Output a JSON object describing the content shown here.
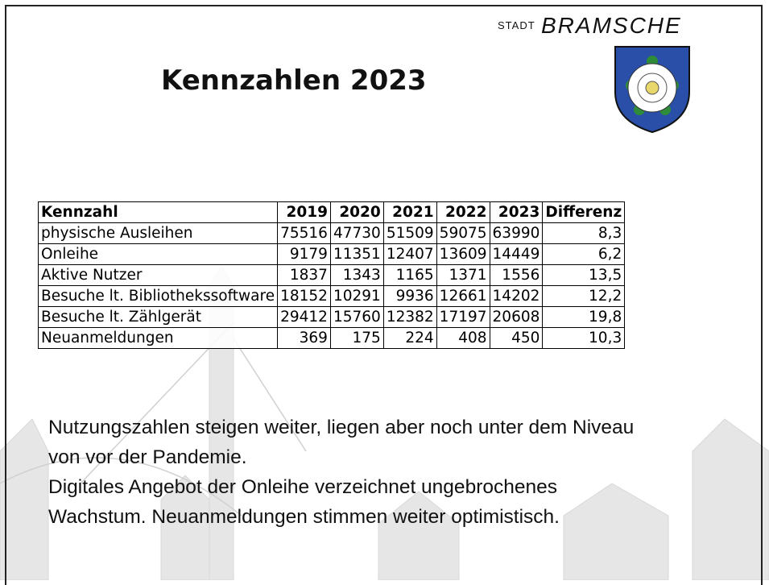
{
  "logo": {
    "prefix": "STADT",
    "name": "BRAMSCHE"
  },
  "header": {
    "title": "Kennzahlen 2023"
  },
  "table": {
    "columns": [
      "Kennzahl",
      "2019",
      "2020",
      "2021",
      "2022",
      "2023",
      "Differenz"
    ],
    "rows": [
      [
        "physische Ausleihen",
        "75516",
        "47730",
        "51509",
        "59075",
        "63990",
        "8,3"
      ],
      [
        "Onleihe",
        "9179",
        "11351",
        "12407",
        "13609",
        "14449",
        "6,2"
      ],
      [
        "Aktive Nutzer",
        "1837",
        "1343",
        "1165",
        "1371",
        "1556",
        "13,5"
      ],
      [
        "Besuche lt. Bibliothekssoftware",
        "18152",
        "10291",
        "9936",
        "12661",
        "14202",
        "12,2"
      ],
      [
        "Besuche lt. Zählgerät",
        "29412",
        "15760",
        "12382",
        "17197",
        "20608",
        "19,8"
      ],
      [
        "Neuanmeldungen",
        "369",
        "175",
        "224",
        "408",
        "450",
        "10,3"
      ]
    ]
  },
  "body": {
    "paragraphs": [
      [
        "Nutzungszahlen steigen weiter, liegen aber noch unter dem Niveau",
        "von vor der Pandemie."
      ],
      [
        "Digitales Angebot der Onleihe verzeichnet ungebrochenes",
        "Wachstum. Neuanmeldungen stimmen weiter optimistisch."
      ]
    ]
  }
}
